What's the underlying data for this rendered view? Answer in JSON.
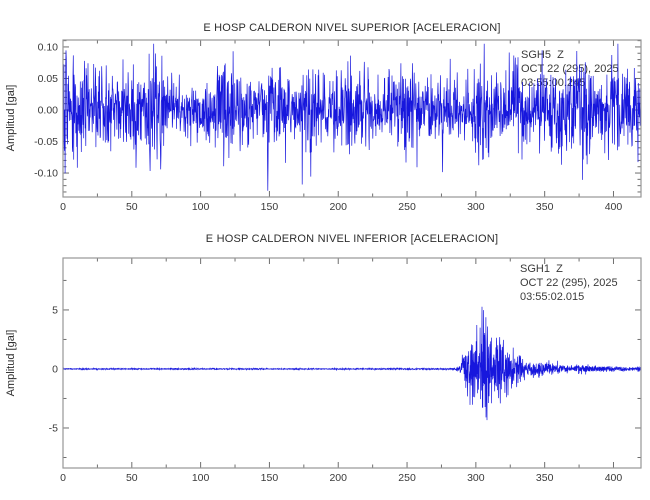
{
  "page": {
    "background": "#ffffff",
    "trace_color": "#1717dd",
    "frame_color": "#979797",
    "tick_color": "#6e6e6e",
    "text_color": "#2e2e2e"
  },
  "chart_data": [
    {
      "type": "line",
      "title": "E HOSP CALDERON NIVEL SUPERIOR [ACELERACION]",
      "xlabel": "",
      "ylabel": "Amplitud [gal]",
      "xlim": [
        0,
        420
      ],
      "ylim": [
        -0.138,
        0.111
      ],
      "x_major_ticks": [
        0,
        50,
        100,
        150,
        200,
        250,
        300,
        350,
        400
      ],
      "x_tick_labels": [
        "0",
        "50",
        "100",
        "150",
        "200",
        "250",
        "300",
        "350",
        "400"
      ],
      "x_minor_step": 25,
      "y_major_ticks": [
        0.1,
        0.05,
        0.0,
        -0.05,
        -0.1
      ],
      "y_tick_labels": [
        "0.10",
        "0.05",
        "0.00",
        "-0.05",
        "-0.10"
      ],
      "y_minor_step": 0.01,
      "grid": false,
      "legend": "none",
      "annotation": {
        "station": "SGH5  Z",
        "date": "OCT 22 (295), 2025",
        "time": "03:55:00.245"
      },
      "series_description": "continuous broadband ambient acceleration noise, roughly stationary across the full record",
      "amplitude_envelope": {
        "x": [
          0,
          420
        ],
        "peak_gal": [
          0.09,
          0.09
        ]
      },
      "signal": {
        "seed": 20251022,
        "samples": 1900,
        "gain": 0.72,
        "spike_prob": 0.02,
        "spike_gain": 2.0,
        "patch": 56,
        "clamp": [
          -0.128,
          0.105
        ]
      }
    },
    {
      "type": "line",
      "title": "E HOSP CALDERON NIVEL INFERIOR [ACELERACION]",
      "xlabel": "",
      "ylabel": "Amplitud [gal]",
      "xlim": [
        0,
        420
      ],
      "ylim": [
        -8.39,
        9.4
      ],
      "x_major_ticks": [
        0,
        50,
        100,
        150,
        200,
        250,
        300,
        350,
        400
      ],
      "x_tick_labels": [
        "0",
        "50",
        "100",
        "150",
        "200",
        "250",
        "300",
        "350",
        "400"
      ],
      "x_minor_step": 25,
      "y_major_ticks": [
        5,
        0,
        -5
      ],
      "y_tick_labels": [
        "5",
        "0",
        "-5"
      ],
      "y_minor_step": 2.5,
      "grid": false,
      "legend": "none",
      "annotation": {
        "station": "SGH1  Z",
        "date": "OCT 22 (295), 2025",
        "time": "03:55:02.015"
      },
      "series_description": "quiet trace near zero until ~285 s, sharp event onset ~288 s, peak acceleration about +8.7 / -7.6 gal near 300-308 s, coda decaying through 420 s",
      "amplitude_envelope": {
        "x": [
          0,
          280,
          285,
          289,
          293,
          297,
          301,
          305,
          310,
          316,
          324,
          335,
          350,
          370,
          395,
          420
        ],
        "peak_gal": [
          0.07,
          0.07,
          0.15,
          0.9,
          3.5,
          6.5,
          8.7,
          7.8,
          5.5,
          3.4,
          2.1,
          1.3,
          0.75,
          0.45,
          0.3,
          0.25
        ]
      },
      "signal": {
        "seed": 29520251,
        "samples": 3000,
        "gain": 0.72,
        "spike_prob": 0.015,
        "spike_gain": 1.8,
        "patch": 70,
        "clamp": [
          -7.9,
          8.9
        ]
      }
    }
  ]
}
